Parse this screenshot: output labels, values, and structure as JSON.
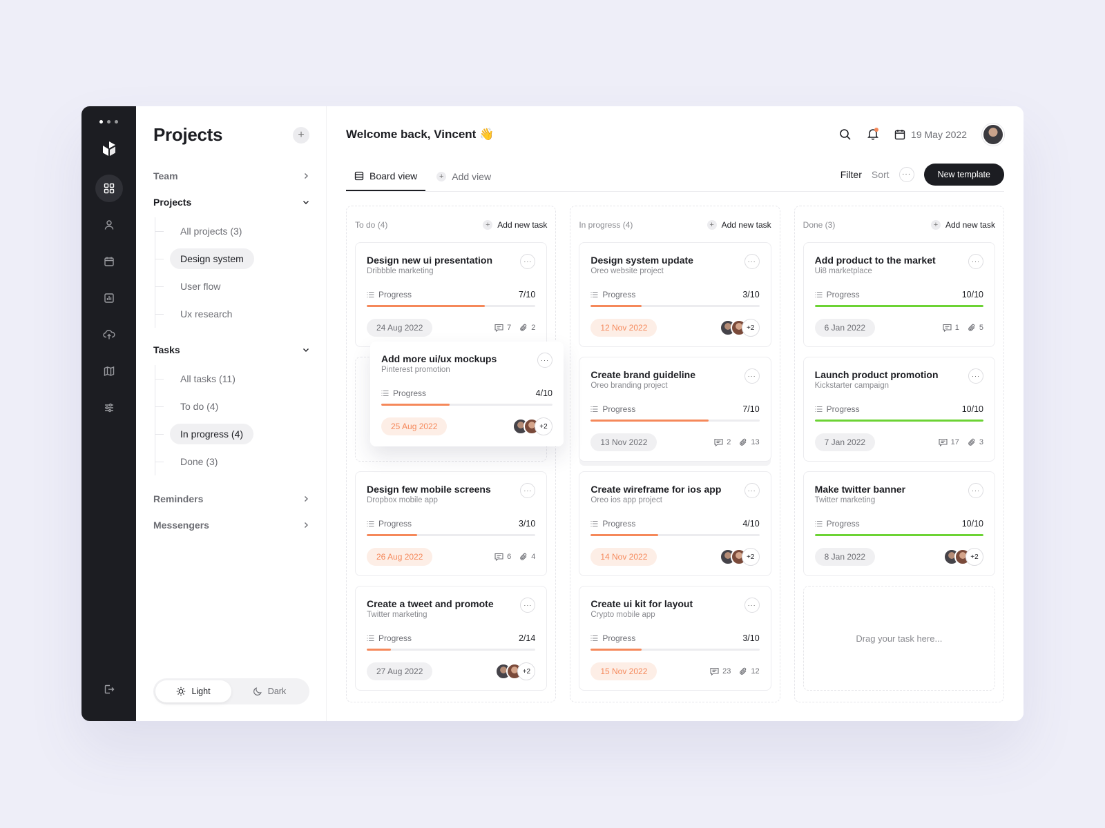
{
  "sidebar": {
    "title": "Projects",
    "sections": [
      {
        "label": "Team",
        "expanded": false
      },
      {
        "label": "Projects",
        "expanded": true,
        "items": [
          "All projects (3)",
          "Design system",
          "User flow",
          "Ux research"
        ],
        "selected": "Design system"
      },
      {
        "label": "Tasks",
        "expanded": true,
        "items": [
          "All tasks (11)",
          "To do (4)",
          "In progress (4)",
          "Done (3)"
        ],
        "selected": "In progress (4)"
      },
      {
        "label": "Reminders",
        "expanded": false
      },
      {
        "label": "Messengers",
        "expanded": false
      }
    ],
    "theme": {
      "light": "Light",
      "dark": "Dark",
      "active": "light"
    }
  },
  "rail": {
    "icons": [
      "grid-icon",
      "user-icon",
      "calendar-icon",
      "chart-icon",
      "upload-cloud-icon",
      "map-icon",
      "sliders-icon",
      "logout-icon"
    ],
    "active": "grid-icon"
  },
  "header": {
    "welcome": "Welcome back, Vincent",
    "wave": "👋",
    "date": "19 May 2022"
  },
  "toolbar": {
    "tabs": [
      {
        "label": "Board view",
        "active": true
      },
      {
        "label": "Add view",
        "active": false
      }
    ],
    "filter": "Filter",
    "sort": "Sort",
    "more": "···",
    "new_template": "New template"
  },
  "board": {
    "add_task_label": "Add new task",
    "progress_label": "Progress",
    "drop_text": "Drag your task here...",
    "columns": [
      {
        "title": "To do (4)",
        "cards": [
          {
            "title": "Design new ui presentation",
            "sub": "Dribbble marketing",
            "progress": "7/10",
            "fraction": 0.7,
            "date": "24 Aug 2022",
            "date_style": "gray",
            "comments": "7",
            "attachments": "2"
          },
          {
            "title": "Add more ui/ux mockups",
            "sub": "Pinterest promotion",
            "progress": "4/10",
            "fraction": 0.4,
            "date": "25 Aug 2022",
            "date_style": "orange",
            "members_more": "+2",
            "dragging": true
          },
          {
            "title": "Design few mobile screens",
            "sub": "Dropbox mobile app",
            "progress": "3/10",
            "fraction": 0.3,
            "date": "26 Aug 2022",
            "date_style": "orange",
            "comments": "6",
            "attachments": "4"
          },
          {
            "title": "Create a tweet and promote",
            "sub": "Twitter marketing",
            "progress": "2/14",
            "fraction": 0.143,
            "date": "27 Aug 2022",
            "date_style": "gray",
            "members_more": "+2"
          }
        ]
      },
      {
        "title": "In progress (4)",
        "cards": [
          {
            "title": "Design system update",
            "sub": "Oreo website project",
            "progress": "3/10",
            "fraction": 0.3,
            "date": "12 Nov 2022",
            "date_style": "orange",
            "members_more": "+2"
          },
          {
            "title": "Create brand guideline",
            "sub": "Oreo branding project",
            "progress": "7/10",
            "fraction": 0.7,
            "date": "13 Nov 2022",
            "date_style": "gray",
            "comments": "2",
            "attachments": "13"
          },
          {
            "title": "Create wireframe for ios app",
            "sub": "Oreo ios app project",
            "progress": "4/10",
            "fraction": 0.4,
            "date": "14 Nov 2022",
            "date_style": "orange",
            "members_more": "+2"
          },
          {
            "title": "Create ui kit for layout",
            "sub": "Crypto mobile app",
            "progress": "3/10",
            "fraction": 0.3,
            "date": "15 Nov 2022",
            "date_style": "orange",
            "comments": "23",
            "attachments": "12"
          }
        ]
      },
      {
        "title": "Done (3)",
        "cards": [
          {
            "title": "Add product to the market",
            "sub": "Ui8 marketplace",
            "progress": "10/10",
            "fraction": 1.0,
            "date": "6 Jan 2022",
            "date_style": "gray",
            "comments": "1",
            "attachments": "5"
          },
          {
            "title": "Launch product promotion",
            "sub": "Kickstarter campaign",
            "progress": "10/10",
            "fraction": 1.0,
            "date": "7 Jan 2022",
            "date_style": "gray",
            "comments": "17",
            "attachments": "3"
          },
          {
            "title": "Make twitter banner",
            "sub": "Twitter marketing",
            "progress": "10/10",
            "fraction": 1.0,
            "date": "8 Jan 2022",
            "date_style": "gray",
            "members_more": "+2"
          }
        ]
      }
    ]
  },
  "colors": {
    "accent": "#f5885a",
    "done": "#6cd334",
    "dark": "#1c1d22"
  }
}
